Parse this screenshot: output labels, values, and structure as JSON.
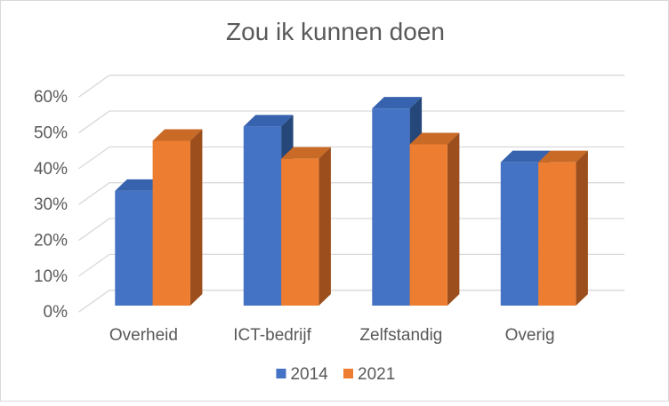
{
  "window": {
    "background": "#ffffff",
    "border_color": "#d9d9d9"
  },
  "chart_data": {
    "type": "bar",
    "style": "3d-clustered-column",
    "title": "Zou ik kunnen doen",
    "categories": [
      "Overheid",
      "ICT-bedrijf",
      "Zelfstandig",
      "Overig"
    ],
    "series": [
      {
        "name": "2014",
        "values": [
          32,
          50,
          55,
          40
        ],
        "color": "#4472C4",
        "color_top": "#3763AE",
        "color_side": "#264779"
      },
      {
        "name": "2021",
        "values": [
          46,
          41,
          45,
          40
        ],
        "color": "#ED7D31",
        "color_top": "#C96A26",
        "color_side": "#9C4E1C"
      }
    ],
    "ylim": [
      0,
      60
    ],
    "ytick_step": 10,
    "ytick_labels": [
      "0%",
      "10%",
      "20%",
      "30%",
      "40%",
      "50%",
      "60%"
    ],
    "grid": true,
    "legend_position": "bottom",
    "text_color": "#595959",
    "gridline_color": "#D9D9D9"
  }
}
